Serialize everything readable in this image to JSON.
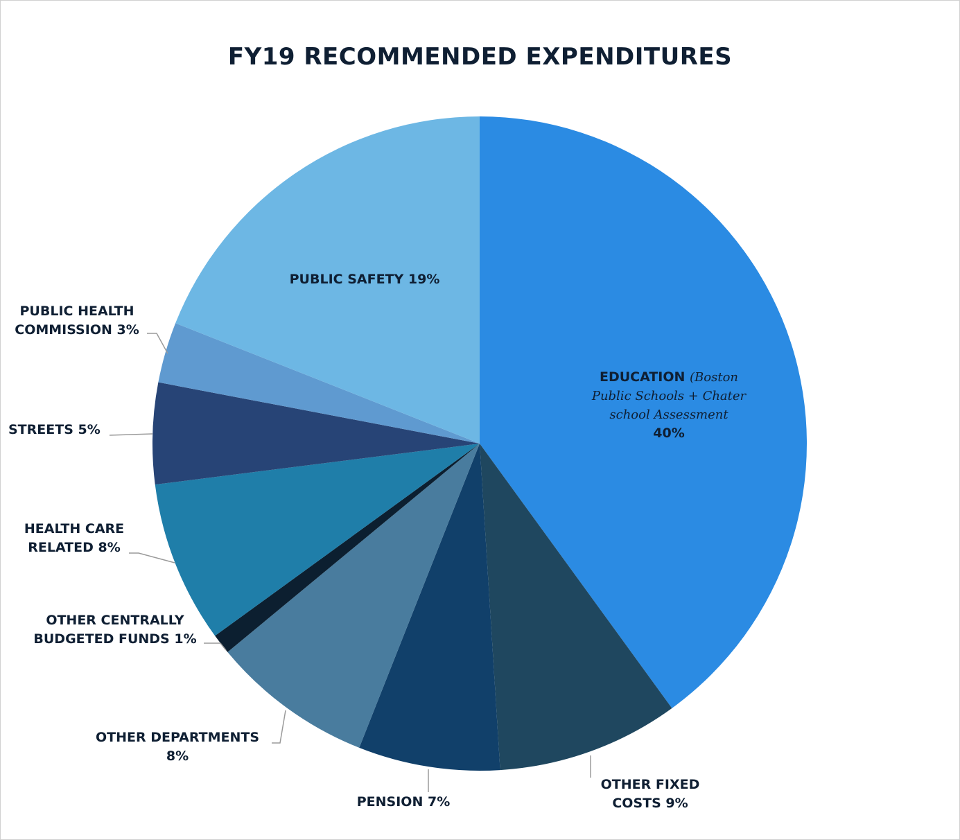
{
  "chart_data": {
    "type": "pie",
    "title": "FY19 RECOMMENDED EXPENDITURES",
    "slices": [
      {
        "key": "education",
        "label": "EDUCATION",
        "value": 40,
        "value_label": "40%",
        "color": "#2b8be3",
        "note_lines": [
          "(Boston",
          "Public Schools + Chater",
          "school Assessment"
        ]
      },
      {
        "key": "other_fixed",
        "label_lines": [
          "OTHER FIXED",
          "COSTS 9%"
        ],
        "value": 9,
        "color": "#1f475f"
      },
      {
        "key": "pension",
        "label_lines": [
          "PENSION 7%"
        ],
        "value": 7,
        "color": "#11406a"
      },
      {
        "key": "other_departments",
        "label_lines": [
          "OTHER DEPARTMENTS",
          "8%"
        ],
        "value": 8,
        "color": "#497c9e"
      },
      {
        "key": "other_cbf",
        "label_lines": [
          "OTHER CENTRALLY",
          "BUDGETED FUNDS 1%"
        ],
        "value": 1,
        "color": "#0c1f30"
      },
      {
        "key": "health_care",
        "label_lines": [
          "HEALTH CARE",
          "RELATED 8%"
        ],
        "value": 8,
        "color": "#1f7ea9"
      },
      {
        "key": "streets",
        "label_lines": [
          "STREETS 5%"
        ],
        "value": 5,
        "color": "#274476"
      },
      {
        "key": "public_health",
        "label_lines": [
          "PUBLIC HEALTH",
          "COMMISSION 3%"
        ],
        "value": 3,
        "color": "#5f9ad0"
      },
      {
        "key": "public_safety",
        "label_lines": [
          "PUBLIC SAFETY 19%"
        ],
        "value": 19,
        "color": "#6db7e4"
      }
    ]
  }
}
